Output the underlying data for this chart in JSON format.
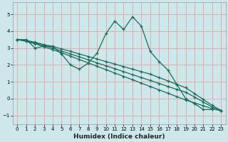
{
  "xlabel": "Humidex (Indice chaleur)",
  "bg_color": "#cce8ea",
  "grid_color": "#e8a0a0",
  "line_color": "#1a6b5a",
  "xlim": [
    -0.5,
    23.5
  ],
  "ylim": [
    -1.5,
    5.7
  ],
  "xticks": [
    0,
    1,
    2,
    3,
    4,
    5,
    6,
    7,
    8,
    9,
    10,
    11,
    12,
    13,
    14,
    15,
    16,
    17,
    18,
    19,
    20,
    21,
    22,
    23
  ],
  "yticks": [
    -1,
    0,
    1,
    2,
    3,
    4,
    5
  ],
  "main_line": [
    3.5,
    3.5,
    3.0,
    3.1,
    3.1,
    2.65,
    2.0,
    1.75,
    2.1,
    2.7,
    3.85,
    4.6,
    4.1,
    4.85,
    4.3,
    2.8,
    2.2,
    1.7,
    0.85,
    0.0,
    -0.3,
    -0.65,
    -0.65
  ],
  "trend_lines": [
    [
      3.5,
      3.45,
      3.35,
      3.2,
      3.1,
      2.95,
      2.8,
      2.65,
      2.5,
      2.35,
      2.2,
      2.05,
      1.9,
      1.75,
      1.6,
      1.45,
      1.25,
      1.05,
      0.85,
      0.65,
      0.3,
      -0.05,
      -0.4,
      -0.7
    ],
    [
      3.5,
      3.42,
      3.3,
      3.15,
      3.0,
      2.82,
      2.65,
      2.48,
      2.3,
      2.12,
      1.95,
      1.78,
      1.6,
      1.42,
      1.25,
      1.08,
      0.9,
      0.72,
      0.55,
      0.38,
      0.1,
      -0.2,
      -0.5,
      -0.72
    ],
    [
      3.5,
      3.4,
      3.25,
      3.08,
      2.9,
      2.72,
      2.52,
      2.32,
      2.12,
      1.92,
      1.72,
      1.52,
      1.32,
      1.12,
      0.92,
      0.72,
      0.52,
      0.32,
      0.12,
      -0.08,
      -0.25,
      -0.42,
      -0.6,
      -0.72
    ]
  ]
}
